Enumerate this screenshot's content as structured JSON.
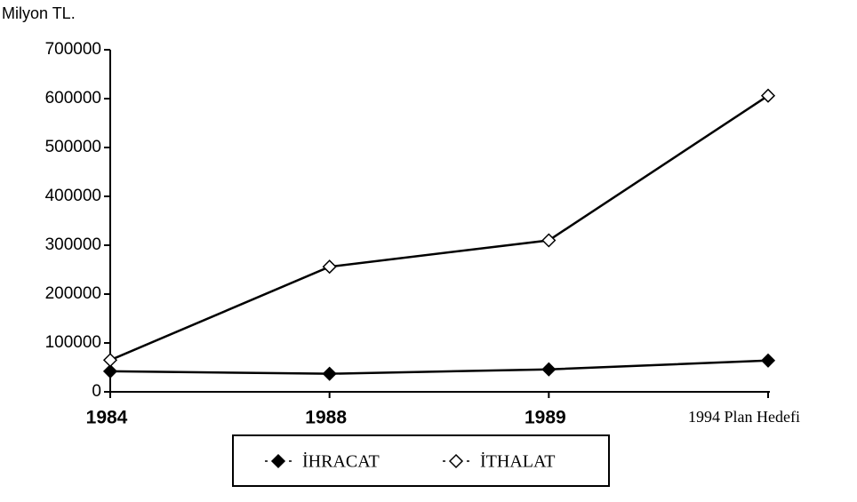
{
  "chart_data": {
    "type": "line",
    "y_label": "Milyon TL.",
    "categories": [
      "1984",
      "1988",
      "1989",
      "1994 Plan Hedefi"
    ],
    "series": [
      {
        "name": "İHRACAT",
        "color": "#000000",
        "marker": "filled-diamond",
        "values": [
          42000,
          37000,
          46000,
          64000
        ]
      },
      {
        "name": "İTHALAT",
        "color": "#000000",
        "marker": "open-diamond",
        "values": [
          65000,
          256000,
          310000,
          606000
        ]
      }
    ],
    "ylim": [
      0,
      700000
    ],
    "yticks": [
      0,
      100000,
      200000,
      300000,
      400000,
      500000,
      600000,
      700000
    ],
    "grid": false,
    "legend": "bottom"
  }
}
